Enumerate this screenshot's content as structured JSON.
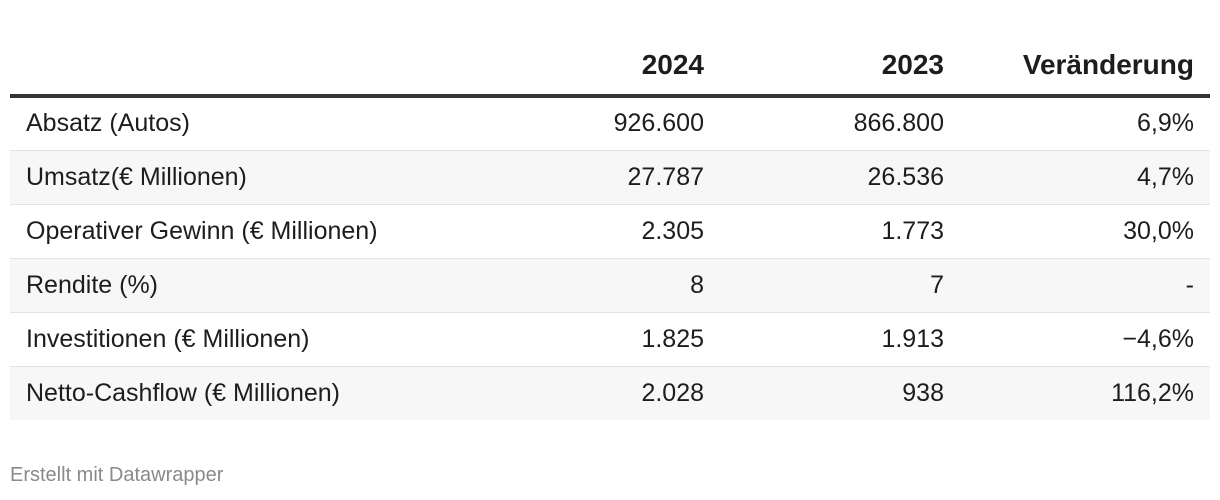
{
  "chart_data": {
    "type": "table",
    "columns": [
      "",
      "2024",
      "2023",
      "Veränderung"
    ],
    "rows": [
      [
        "Absatz (Autos)",
        "926.600",
        "866.800",
        "6,9%"
      ],
      [
        "Umsatz(€ Millionen)",
        "27.787",
        "26.536",
        "4,7%"
      ],
      [
        "Operativer Gewinn (€ Millionen)",
        "2.305",
        "1.773",
        "30,0%"
      ],
      [
        "Rendite (%)",
        "8",
        "7",
        "-"
      ],
      [
        "Investitionen (€ Millionen)",
        "1.825",
        "1.913",
        "−4,6%"
      ],
      [
        "Netto-Cashflow (€ Millionen)",
        "2.028",
        "938",
        "116,2%"
      ]
    ]
  },
  "footer": {
    "credit": "Erstellt mit Datawrapper"
  }
}
